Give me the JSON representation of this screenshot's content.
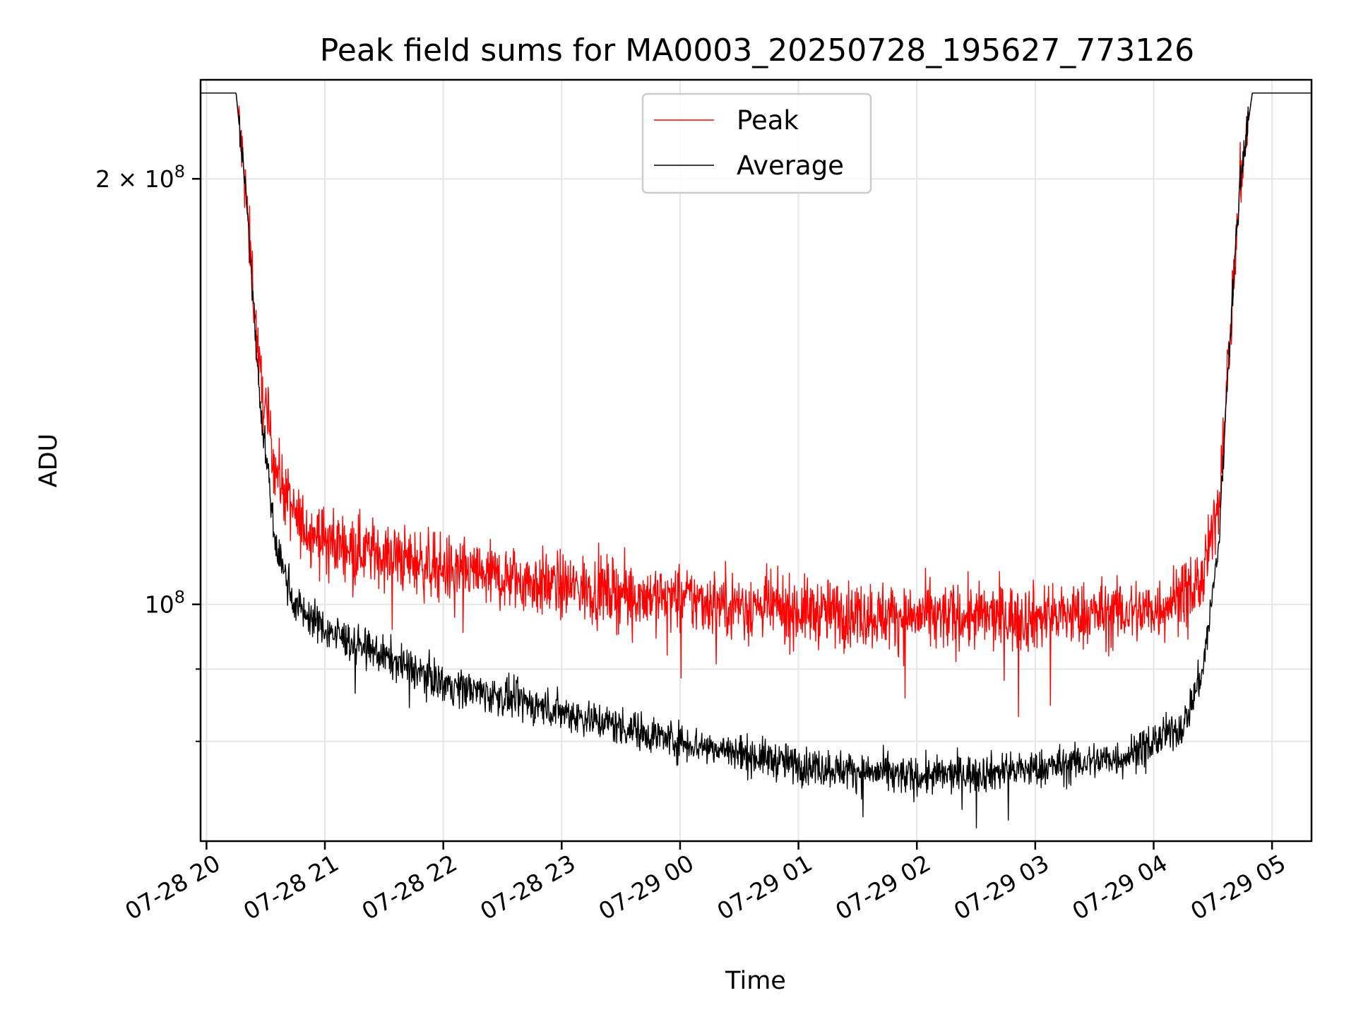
{
  "chart_data": {
    "type": "line",
    "title": "Peak field sums for MA0003_20250728_195627_773126",
    "xlabel": "Time",
    "ylabel": "ADU",
    "y_scale": "log",
    "ylim": [
      68000000,
      235000000
    ],
    "xlim": [
      "2025-07-28 19:57",
      "2025-07-29 05:20"
    ],
    "grid": true,
    "legend_position": "top-center",
    "x_ticks": [
      "07-28 20",
      "07-28 21",
      "07-28 22",
      "07-28 23",
      "07-29 00",
      "07-29 01",
      "07-29 02",
      "07-29 03",
      "07-29 04",
      "07-29 05"
    ],
    "y_ticks_major": [
      {
        "value": 100000000,
        "label": "10^8"
      },
      {
        "value": 200000000,
        "label": "2 × 10^8"
      }
    ],
    "y_ticks_minor": [
      90000000,
      80000000
    ],
    "series": [
      {
        "name": "Peak",
        "color": "#ff0000",
        "noise": 0.028,
        "points": [
          [
            "2025-07-28 19:57",
            230000000
          ],
          [
            "2025-07-28 20:15",
            230000000
          ],
          [
            "2025-07-28 20:20",
            195000000
          ],
          [
            "2025-07-28 20:27",
            145000000
          ],
          [
            "2025-07-28 20:35",
            125000000
          ],
          [
            "2025-07-28 20:45",
            115000000
          ],
          [
            "2025-07-28 21:00",
            111000000
          ],
          [
            "2025-07-28 22:00",
            106000000
          ],
          [
            "2025-07-28 23:00",
            103000000
          ],
          [
            "2025-07-29 00:00",
            101000000
          ],
          [
            "2025-07-29 01:00",
            99000000
          ],
          [
            "2025-07-29 02:00",
            98000000
          ],
          [
            "2025-07-29 03:00",
            98000000
          ],
          [
            "2025-07-29 04:00",
            99000000
          ],
          [
            "2025-07-29 04:25",
            104000000
          ],
          [
            "2025-07-29 04:33",
            118000000
          ],
          [
            "2025-07-29 04:38",
            150000000
          ],
          [
            "2025-07-29 04:44",
            200000000
          ],
          [
            "2025-07-29 04:50",
            230000000
          ],
          [
            "2025-07-29 05:20",
            230000000
          ]
        ]
      },
      {
        "name": "Average",
        "color": "#000000",
        "noise": 0.016,
        "points": [
          [
            "2025-07-28 19:57",
            230000000
          ],
          [
            "2025-07-28 20:15",
            230000000
          ],
          [
            "2025-07-28 20:20",
            195000000
          ],
          [
            "2025-07-28 20:27",
            140000000
          ],
          [
            "2025-07-28 20:35",
            110000000
          ],
          [
            "2025-07-28 20:45",
            100000000
          ],
          [
            "2025-07-28 21:00",
            96000000
          ],
          [
            "2025-07-28 22:00",
            88000000
          ],
          [
            "2025-07-28 23:00",
            84000000
          ],
          [
            "2025-07-29 00:00",
            80000000
          ],
          [
            "2025-07-29 01:00",
            77000000
          ],
          [
            "2025-07-29 02:00",
            75500000
          ],
          [
            "2025-07-29 03:00",
            76500000
          ],
          [
            "2025-07-29 03:45",
            78000000
          ],
          [
            "2025-07-29 04:15",
            82000000
          ],
          [
            "2025-07-29 04:25",
            90000000
          ],
          [
            "2025-07-29 04:33",
            110000000
          ],
          [
            "2025-07-29 04:38",
            150000000
          ],
          [
            "2025-07-29 04:44",
            200000000
          ],
          [
            "2025-07-29 04:50",
            230000000
          ],
          [
            "2025-07-29 05:20",
            230000000
          ]
        ]
      }
    ]
  }
}
